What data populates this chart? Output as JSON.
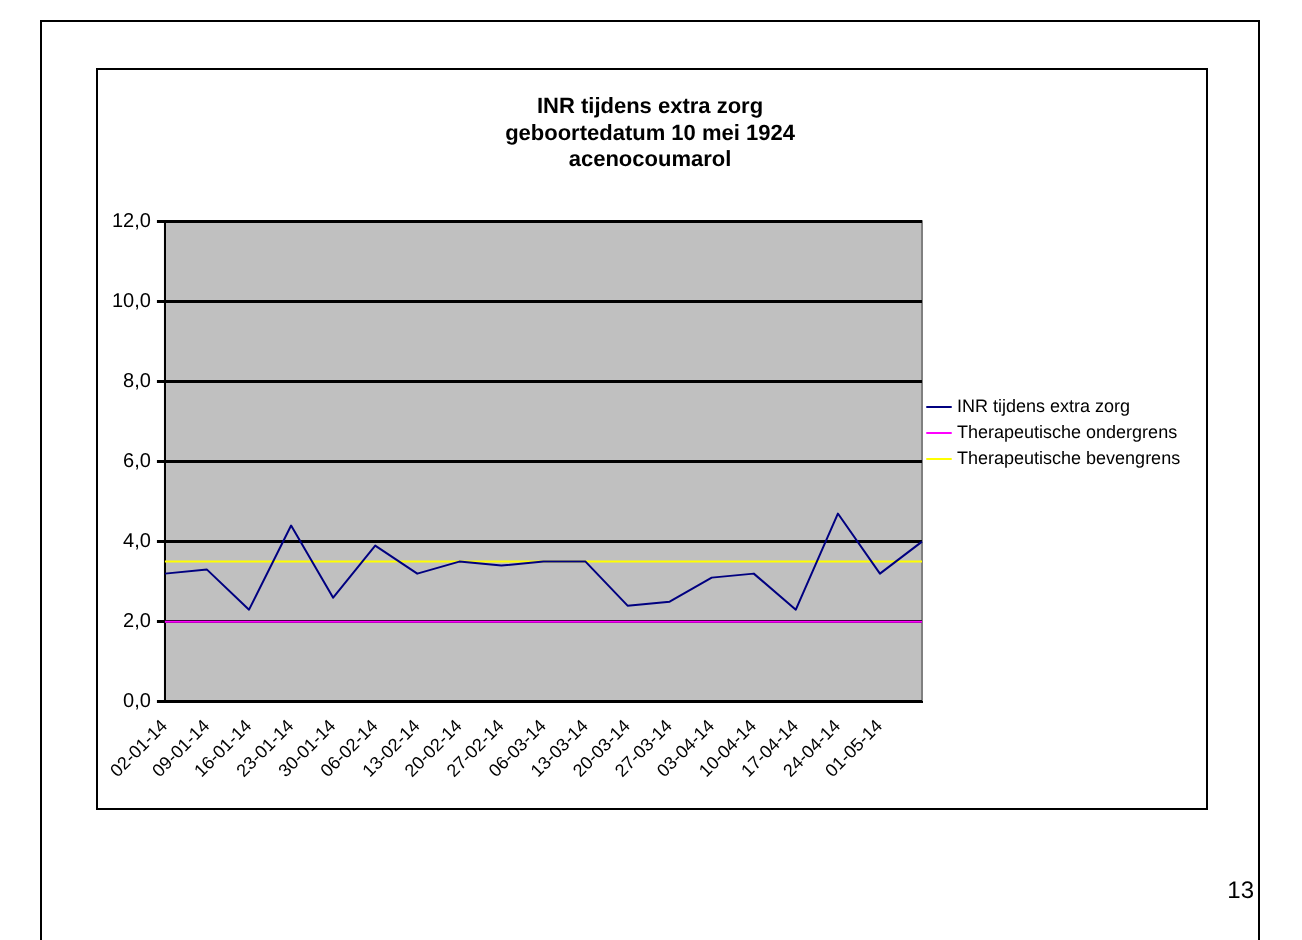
{
  "chart_data": {
    "type": "line",
    "title": "INR tijdens extra zorg\ngeboortedatum 10 mei 1924\nacenocoumarol",
    "categories": [
      "02-01-14",
      "09-01-14",
      "16-01-14",
      "23-01-14",
      "30-01-14",
      "06-02-14",
      "13-02-14",
      "20-02-14",
      "27-02-14",
      "06-03-14",
      "13-03-14",
      "20-03-14",
      "27-03-14",
      "03-04-14",
      "10-04-14",
      "17-04-14",
      "24-04-14",
      "01-05-14",
      null
    ],
    "series": [
      {
        "name": "INR tijdens extra zorg",
        "color": "#000080",
        "values": [
          3.2,
          3.3,
          2.3,
          4.4,
          2.6,
          3.9,
          3.2,
          3.5,
          3.4,
          3.5,
          3.5,
          2.4,
          2.5,
          3.1,
          3.2,
          2.3,
          4.7,
          3.2,
          4.0
        ]
      },
      {
        "name": "Therapeutische ondergrens",
        "color": "#ff00ff",
        "values": [
          2,
          2,
          2,
          2,
          2,
          2,
          2,
          2,
          2,
          2,
          2,
          2,
          2,
          2,
          2,
          2,
          2,
          2,
          2
        ]
      },
      {
        "name": "Therapeutische bevengrens",
        "color": "#ffff00",
        "values": [
          3.5,
          3.5,
          3.5,
          3.5,
          3.5,
          3.5,
          3.5,
          3.5,
          3.5,
          3.5,
          3.5,
          3.5,
          3.5,
          3.5,
          3.5,
          3.5,
          3.5,
          3.5,
          3.5
        ]
      }
    ],
    "ylim": [
      0,
      12
    ],
    "yticks": [
      {
        "value": 0,
        "label": "0,0"
      },
      {
        "value": 2,
        "label": "2,0"
      },
      {
        "value": 4,
        "label": "4,0"
      },
      {
        "value": 6,
        "label": "6,0"
      },
      {
        "value": 8,
        "label": "8,0"
      },
      {
        "value": 10,
        "label": "10,0"
      },
      {
        "value": 12,
        "label": "12,0"
      }
    ],
    "grid": "y",
    "legend": "right",
    "marker": "none",
    "line_style": "solid",
    "annotations": [
      "13"
    ]
  }
}
